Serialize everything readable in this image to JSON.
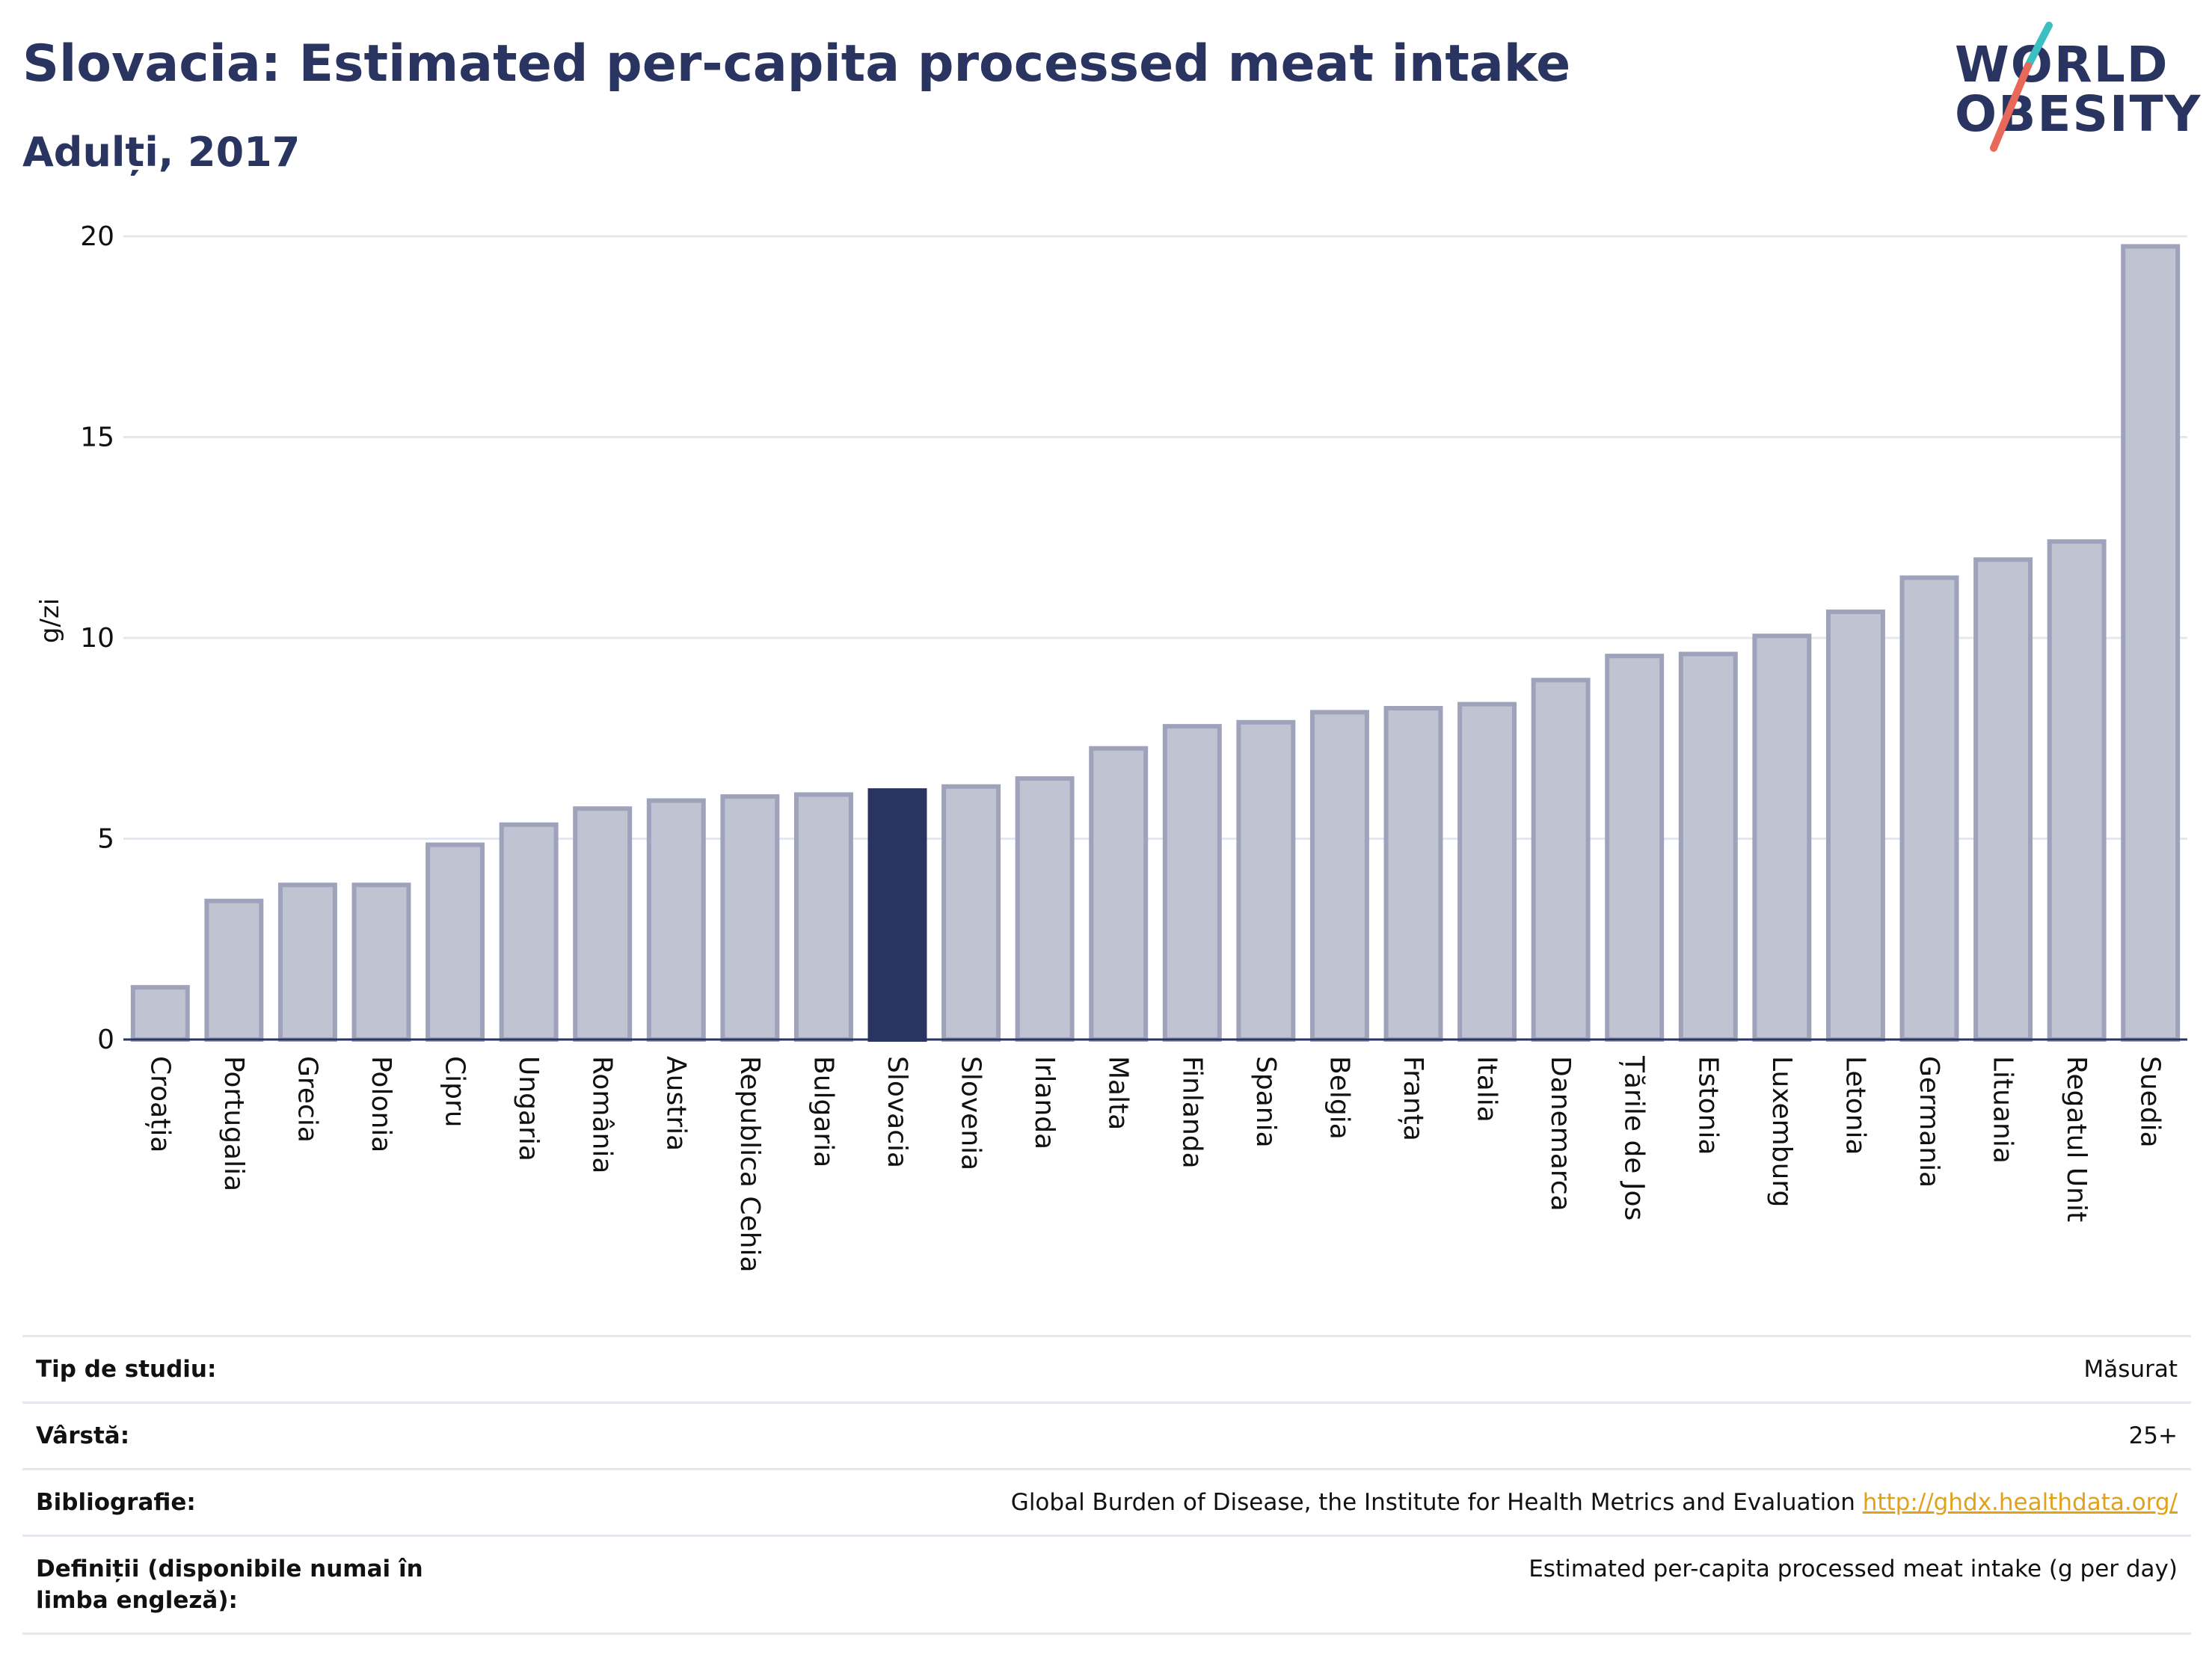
{
  "header": {
    "title": "Slovacia: Estimated per-capita processed meat intake",
    "subtitle": "Adulți, 2017"
  },
  "logo": {
    "line1": "WORLD",
    "line2": "OBESITY",
    "colors": {
      "text": "#2a3460",
      "slash_top": "#3bbfc0",
      "slash_bottom": "#e8685a"
    }
  },
  "chart_data": {
    "type": "bar",
    "title": "Slovacia: Estimated per-capita processed meat intake",
    "subtitle": "Adulți, 2017",
    "xlabel": "",
    "ylabel": "g/zi",
    "ylim": [
      0,
      20
    ],
    "yticks": [
      0,
      5,
      10,
      15,
      20
    ],
    "grid": true,
    "highlight": "Slovacia",
    "colors": {
      "bar": "#c0c3d1",
      "bar_border": "#9ea2ba",
      "highlight": "#2a3460",
      "grid": "#e4e8ee"
    },
    "categories": [
      "Croația",
      "Portugalia",
      "Grecia",
      "Polonia",
      "Cipru",
      "Ungaria",
      "România",
      "Austria",
      "Republica Cehia",
      "Bulgaria",
      "Slovacia",
      "Slovenia",
      "Irlanda",
      "Malta",
      "Finlanda",
      "Spania",
      "Belgia",
      "Franța",
      "Italia",
      "Danemarca",
      "Țările de Jos",
      "Estonia",
      "Luxemburg",
      "Letonia",
      "Germania",
      "Lituania",
      "Regatul Unit",
      "Suedia"
    ],
    "values": [
      1.3,
      3.45,
      3.85,
      3.85,
      4.85,
      5.35,
      5.75,
      5.95,
      6.05,
      6.1,
      6.2,
      6.3,
      6.5,
      7.25,
      7.8,
      7.9,
      8.15,
      8.25,
      8.35,
      8.95,
      9.55,
      9.6,
      10.05,
      10.65,
      11.5,
      11.95,
      12.4,
      19.75
    ]
  },
  "info": {
    "rows": [
      {
        "label": "Tip de studiu:",
        "value": "Măsurat"
      },
      {
        "label": "Vârstă:",
        "value": "25+"
      },
      {
        "label": "Bibliografie:",
        "value": "Global Burden of Disease, the Institute for Health Metrics and Evaluation",
        "link": "http://ghdx.healthdata.org/"
      },
      {
        "label": "Definiții (disponibile numai în limba engleză):",
        "value": "Estimated per-capita processed meat intake (g per day)"
      }
    ]
  }
}
